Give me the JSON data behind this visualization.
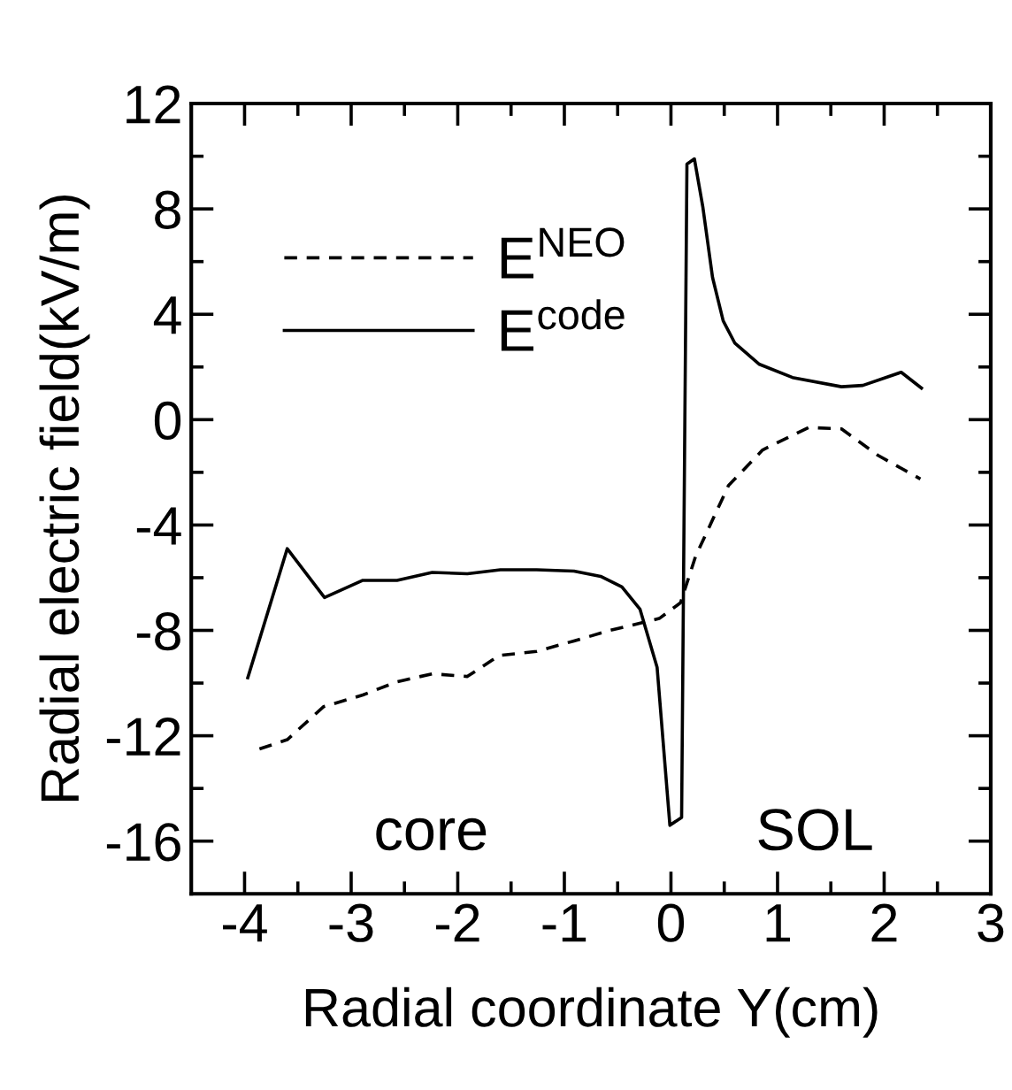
{
  "chart_data": {
    "type": "line",
    "xlabel": "Radial coordinate Y(cm)",
    "ylabel": "Radial electric field(kV/m)",
    "annotations": [
      "core",
      "SOL"
    ],
    "xlim": [
      -4.5,
      3
    ],
    "ylim": [
      -18,
      12
    ],
    "xticks": [
      -4,
      {
        "value": -3.5,
        "label": null
      },
      -3,
      {
        "value": -2.5,
        "label": null
      },
      -2,
      {
        "value": -1.5,
        "label": null
      },
      -1,
      {
        "value": -0.5,
        "label": null
      },
      0,
      {
        "value": 0.5,
        "label": null
      },
      1,
      {
        "value": 1.5,
        "label": null
      },
      2,
      {
        "value": 2.5,
        "label": null
      },
      3
    ],
    "yticks": [
      -16,
      {
        "value": -14,
        "label": null
      },
      -12,
      {
        "value": -10,
        "label": null
      },
      -8,
      {
        "value": -6,
        "label": null
      },
      -4,
      {
        "value": -2,
        "label": null
      },
      0,
      {
        "value": 2,
        "label": null
      },
      4,
      {
        "value": 6,
        "label": null
      },
      8,
      {
        "value": 10,
        "label": null
      },
      12
    ],
    "grid": false,
    "legend": "top left",
    "marker": "none",
    "series": [
      {
        "name": "E$^{NEO}$",
        "color": "#000000",
        "line_style": "dashed",
        "x": [
          -3.86,
          -3.6,
          -3.26,
          -2.89,
          -2.57,
          -2.24,
          -1.91,
          -1.61,
          -1.26,
          -0.91,
          -0.57,
          -0.11,
          0.09,
          0.23,
          0.54,
          0.86,
          1.29,
          1.6,
          1.94,
          2.34
        ],
        "values": [
          -12.5,
          -12.15,
          -10.9,
          -10.45,
          -9.95,
          -9.65,
          -9.75,
          -8.95,
          -8.8,
          -8.4,
          -8.0,
          -7.55,
          -6.95,
          -5.2,
          -2.5,
          -1.15,
          -0.3,
          -0.35,
          -1.35,
          -2.25
        ]
      },
      {
        "name": "E$^{code}$",
        "color": "#000000",
        "line_style": "solid",
        "x": [
          -3.97,
          -3.6,
          -3.25,
          -2.89,
          -2.57,
          -2.24,
          -1.91,
          -1.6,
          -1.26,
          -0.91,
          -0.66,
          -0.46,
          -0.29,
          -0.13,
          -0.01,
          0.1,
          0.15,
          0.22,
          0.3,
          0.39,
          0.49,
          0.6,
          0.83,
          1.14,
          1.6,
          1.8,
          2.16,
          2.35
        ],
        "values": [
          -9.8,
          -4.9,
          -6.75,
          -6.1,
          -6.1,
          -5.8,
          -5.85,
          -5.7,
          -5.7,
          -5.75,
          -5.95,
          -6.35,
          -7.2,
          -9.4,
          -15.4,
          -15.1,
          9.7,
          9.9,
          8.05,
          5.4,
          3.75,
          2.9,
          2.1,
          1.6,
          1.25,
          1.3,
          1.8,
          1.2
        ]
      }
    ]
  }
}
